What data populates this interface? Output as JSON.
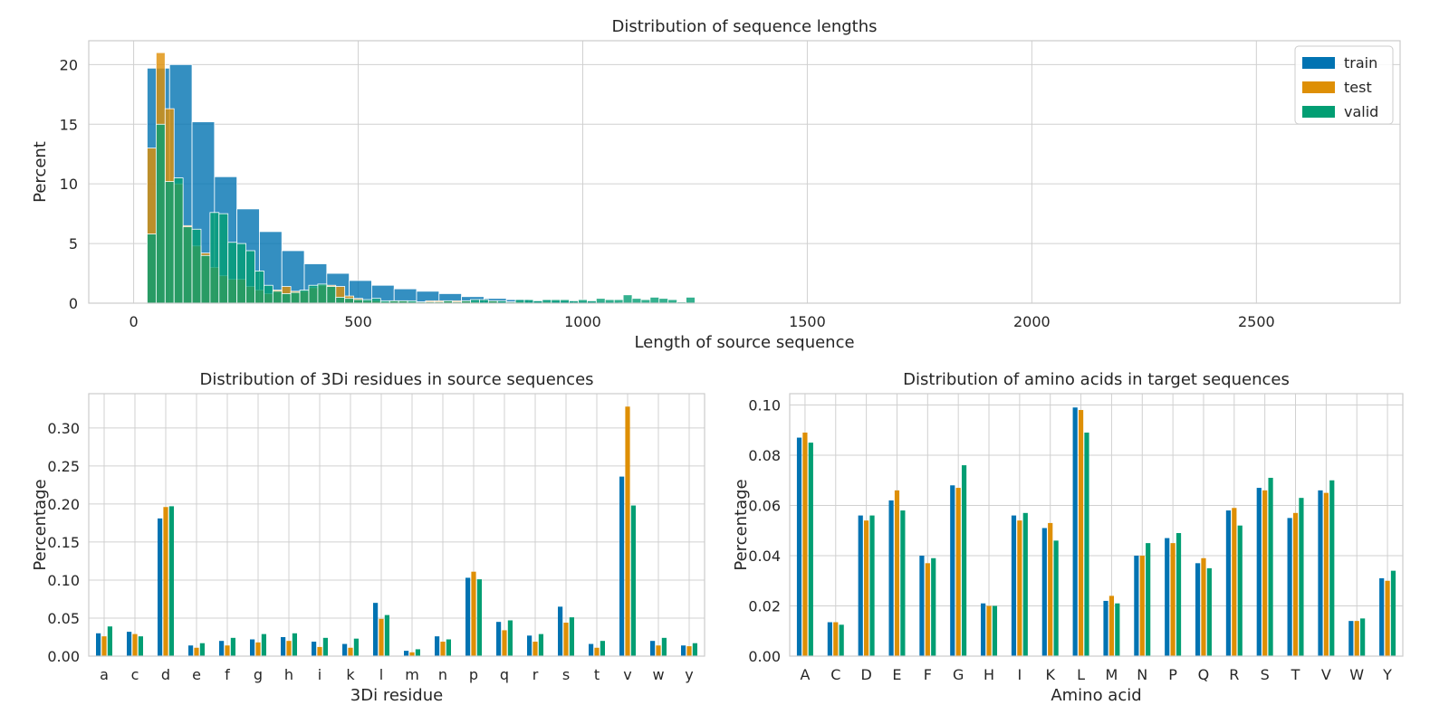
{
  "colors": {
    "train": "#0173b2",
    "test": "#de8f05",
    "valid": "#029e73",
    "grid": "#d0d0d0",
    "frame": "#cccccc"
  },
  "legend": [
    "train",
    "test",
    "valid"
  ],
  "chart_data": [
    {
      "id": "lengths",
      "type": "histogram",
      "title": "Distribution of sequence lengths",
      "xlabel": "Length of source sequence",
      "ylabel": "Percent",
      "xlim": [
        -100,
        2820
      ],
      "ylim": [
        0,
        22
      ],
      "xticks": [
        0,
        500,
        1000,
        1500,
        2000,
        2500
      ],
      "yticks": [
        0,
        5,
        10,
        15,
        20
      ],
      "legend_position": "top-right",
      "series": [
        {
          "name": "train",
          "bin_start": 30,
          "bin_width": 50,
          "values": [
            19.7,
            20.0,
            15.2,
            10.6,
            7.9,
            6.0,
            4.4,
            3.3,
            2.5,
            1.9,
            1.5,
            1.2,
            1.0,
            0.8,
            0.55,
            0.4,
            0.3,
            0.25,
            0.2,
            0.15,
            0.12
          ]
        },
        {
          "name": "test",
          "bin_start": 30,
          "bin_width": 20,
          "values": [
            13.0,
            21.0,
            16.3,
            10.0,
            6.5,
            4.8,
            4.2,
            3.0,
            2.3,
            2.0,
            2.0,
            1.4,
            1.1,
            0.8,
            1.1,
            1.4,
            1.0,
            1.0,
            1.3,
            1.5,
            1.5,
            1.4,
            0.6,
            0.4,
            0.2,
            0.2,
            0.1,
            0.2,
            0.2,
            0.1,
            0.1,
            0.2,
            0.2,
            0.2,
            0.2,
            0.2,
            0.1,
            0.0,
            0.2,
            0.0,
            0.1,
            0.1,
            0.0,
            0.0,
            0.1,
            0.0,
            0.0,
            0.0,
            0.0,
            0.0,
            0.0,
            0.0,
            0.0,
            0.0,
            0.0,
            0.0,
            0.0,
            0.0,
            0.0,
            0.0,
            0.0
          ]
        },
        {
          "name": "valid",
          "bin_start": 30,
          "bin_width": 20,
          "values": [
            5.8,
            15.0,
            10.2,
            10.5,
            6.4,
            6.2,
            4.0,
            7.6,
            7.5,
            5.1,
            5.0,
            4.4,
            2.7,
            1.5,
            1.0,
            0.8,
            0.9,
            1.1,
            1.5,
            1.6,
            1.4,
            0.5,
            0.4,
            0.3,
            0.3,
            0.4,
            0.2,
            0.2,
            0.2,
            0.2,
            0.1,
            0.1,
            0.1,
            0.2,
            0.1,
            0.2,
            0.3,
            0.3,
            0.2,
            0.2,
            0.1,
            0.3,
            0.3,
            0.2,
            0.3,
            0.3,
            0.3,
            0.2,
            0.3,
            0.2,
            0.4,
            0.3,
            0.3,
            0.7,
            0.4,
            0.3,
            0.5,
            0.4,
            0.3,
            0.1,
            0.5
          ]
        }
      ]
    },
    {
      "id": "3di",
      "type": "bar",
      "title": "Distribution of 3Di residues in source sequences",
      "xlabel": "3Di residue",
      "ylabel": "Percentage",
      "ylim": [
        0,
        0.345
      ],
      "yticks": [
        "0.00",
        "0.05",
        "0.10",
        "0.15",
        "0.20",
        "0.25",
        "0.30"
      ],
      "categories": [
        "a",
        "c",
        "d",
        "e",
        "f",
        "g",
        "h",
        "i",
        "k",
        "l",
        "m",
        "n",
        "p",
        "q",
        "r",
        "s",
        "t",
        "v",
        "w",
        "y"
      ],
      "series": [
        {
          "name": "train",
          "values": [
            0.03,
            0.032,
            0.181,
            0.014,
            0.02,
            0.022,
            0.025,
            0.019,
            0.016,
            0.07,
            0.007,
            0.026,
            0.103,
            0.045,
            0.027,
            0.065,
            0.016,
            0.236,
            0.02,
            0.014
          ]
        },
        {
          "name": "test",
          "values": [
            0.026,
            0.029,
            0.196,
            0.011,
            0.014,
            0.018,
            0.02,
            0.012,
            0.011,
            0.049,
            0.005,
            0.019,
            0.111,
            0.034,
            0.019,
            0.044,
            0.011,
            0.328,
            0.014,
            0.013
          ]
        },
        {
          "name": "valid",
          "values": [
            0.039,
            0.026,
            0.197,
            0.017,
            0.024,
            0.029,
            0.03,
            0.024,
            0.023,
            0.054,
            0.009,
            0.022,
            0.101,
            0.047,
            0.029,
            0.051,
            0.02,
            0.198,
            0.024,
            0.017
          ]
        }
      ]
    },
    {
      "id": "aa",
      "type": "bar",
      "title": "Distribution of amino acids in target sequences",
      "xlabel": "Amino acid",
      "ylabel": "Percentage",
      "ylim": [
        0,
        0.1045
      ],
      "yticks": [
        "0.00",
        "0.02",
        "0.04",
        "0.06",
        "0.08",
        "0.10"
      ],
      "categories": [
        "A",
        "C",
        "D",
        "E",
        "F",
        "G",
        "H",
        "I",
        "K",
        "L",
        "M",
        "N",
        "P",
        "Q",
        "R",
        "S",
        "T",
        "V",
        "W",
        "Y"
      ],
      "series": [
        {
          "name": "train",
          "values": [
            0.087,
            0.0135,
            0.056,
            0.062,
            0.04,
            0.068,
            0.021,
            0.056,
            0.051,
            0.099,
            0.022,
            0.04,
            0.047,
            0.037,
            0.058,
            0.067,
            0.055,
            0.066,
            0.014,
            0.031
          ]
        },
        {
          "name": "test",
          "values": [
            0.089,
            0.0135,
            0.054,
            0.066,
            0.037,
            0.067,
            0.02,
            0.054,
            0.053,
            0.098,
            0.024,
            0.04,
            0.045,
            0.039,
            0.059,
            0.066,
            0.057,
            0.065,
            0.014,
            0.03
          ]
        },
        {
          "name": "valid",
          "values": [
            0.085,
            0.0125,
            0.056,
            0.058,
            0.039,
            0.076,
            0.02,
            0.057,
            0.046,
            0.089,
            0.021,
            0.045,
            0.049,
            0.035,
            0.052,
            0.071,
            0.063,
            0.07,
            0.015,
            0.034
          ]
        }
      ]
    }
  ]
}
